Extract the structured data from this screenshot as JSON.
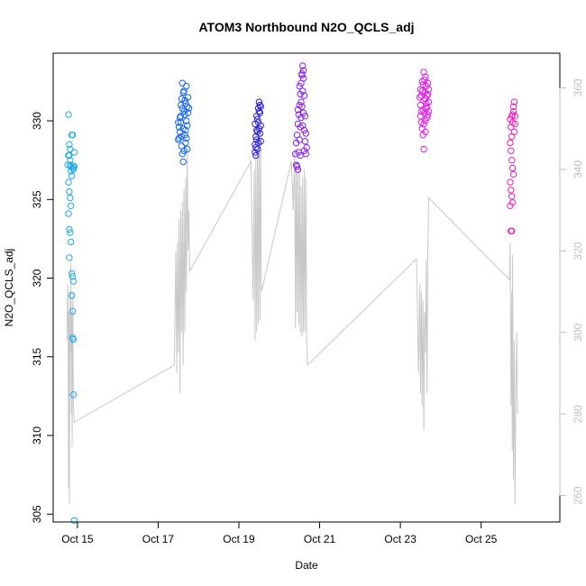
{
  "chart_data": {
    "type": "scatter",
    "title": "ATOM3 Northbound N2O_QCLS_adj",
    "xlabel": "Date",
    "ylabel": "N2O_QCLS_adj",
    "x_ticks": [
      "Oct 15",
      "Oct 17",
      "Oct 19",
      "Oct 21",
      "Oct 23",
      "Oct 25"
    ],
    "x_tick_days": [
      15,
      17,
      19,
      21,
      23,
      25
    ],
    "xlim": [
      14.4,
      26.95
    ],
    "ylim": [
      304.5,
      334.3
    ],
    "y_ticks": [
      305,
      310,
      315,
      320,
      325,
      330
    ],
    "y2_ticks": [
      260,
      280,
      300,
      320,
      340,
      360
    ],
    "y2lim": [
      253.5,
      368.5
    ],
    "grid": false,
    "legend": "none",
    "series": [
      {
        "color": "#1fa9f0",
        "day_range": [
          14.74,
          14.95
        ],
        "points": [
          [
            14.78,
            330.4
          ],
          [
            14.8,
            328.5
          ],
          [
            14.82,
            327.5
          ],
          [
            14.84,
            327.1
          ],
          [
            14.86,
            329.1
          ],
          [
            14.88,
            327.0
          ],
          [
            14.8,
            327.8
          ],
          [
            14.82,
            327.2
          ],
          [
            14.84,
            326.8
          ],
          [
            14.86,
            326.5
          ],
          [
            14.78,
            326.1
          ],
          [
            14.8,
            325.5
          ],
          [
            14.82,
            325.1
          ],
          [
            14.84,
            324.6
          ],
          [
            14.78,
            324.1
          ],
          [
            14.8,
            323.1
          ],
          [
            14.82,
            322.9
          ],
          [
            14.84,
            322.3
          ],
          [
            14.8,
            321.3
          ],
          [
            14.86,
            320.3
          ],
          [
            14.88,
            320.1
          ],
          [
            14.9,
            319.8
          ],
          [
            14.86,
            318.9
          ],
          [
            14.88,
            317.9
          ],
          [
            14.88,
            316.2
          ],
          [
            14.9,
            316.1
          ],
          [
            14.9,
            312.6
          ],
          [
            14.92,
            304.6
          ],
          [
            14.9,
            327.1
          ],
          [
            14.92,
            328.0
          ],
          [
            14.88,
            329.1
          ],
          [
            14.78,
            327.8
          ],
          [
            14.76,
            327.2
          ],
          [
            14.82,
            328.2
          ],
          [
            14.9,
            326.9
          ],
          [
            14.92,
            327.1
          ]
        ]
      },
      {
        "color": "#1565f0",
        "day_range": [
          17.48,
          17.76
        ],
        "points": [
          [
            17.5,
            328.8
          ],
          [
            17.52,
            329.6
          ],
          [
            17.54,
            330.2
          ],
          [
            17.56,
            331.0
          ],
          [
            17.58,
            331.4
          ],
          [
            17.6,
            332.4
          ],
          [
            17.62,
            331.8
          ],
          [
            17.64,
            330.6
          ],
          [
            17.66,
            329.1
          ],
          [
            17.68,
            328.6
          ],
          [
            17.7,
            330.0
          ],
          [
            17.72,
            330.9
          ],
          [
            17.74,
            331.5
          ],
          [
            17.52,
            328.9
          ],
          [
            17.54,
            329.3
          ],
          [
            17.56,
            329.9
          ],
          [
            17.58,
            328.4
          ],
          [
            17.6,
            327.9
          ],
          [
            17.62,
            327.4
          ],
          [
            17.64,
            328.1
          ],
          [
            17.66,
            330.4
          ],
          [
            17.68,
            331.1
          ],
          [
            17.7,
            332.2
          ],
          [
            17.72,
            329.7
          ],
          [
            17.74,
            330.5
          ],
          [
            17.76,
            330.8
          ],
          [
            17.5,
            329.9
          ],
          [
            17.56,
            330.3
          ],
          [
            17.62,
            329.5
          ],
          [
            17.66,
            331.3
          ],
          [
            17.7,
            328.9
          ],
          [
            17.58,
            329.0
          ],
          [
            17.64,
            331.9
          ],
          [
            17.72,
            328.2
          ],
          [
            17.6,
            330.8
          ],
          [
            17.68,
            329.4
          ]
        ]
      },
      {
        "color": "#2a1fe0",
        "day_range": [
          19.38,
          19.56
        ],
        "points": [
          [
            19.4,
            328.5
          ],
          [
            19.42,
            329.0
          ],
          [
            19.44,
            329.4
          ],
          [
            19.46,
            330.1
          ],
          [
            19.48,
            330.8
          ],
          [
            19.5,
            331.2
          ],
          [
            19.52,
            330.5
          ],
          [
            19.54,
            329.7
          ],
          [
            19.4,
            328.0
          ],
          [
            19.42,
            328.3
          ],
          [
            19.44,
            328.8
          ],
          [
            19.46,
            329.3
          ],
          [
            19.48,
            329.9
          ],
          [
            19.5,
            330.6
          ],
          [
            19.52,
            331.0
          ],
          [
            19.54,
            328.7
          ],
          [
            19.42,
            327.8
          ],
          [
            19.46,
            328.2
          ],
          [
            19.5,
            329.5
          ],
          [
            19.44,
            330.3
          ],
          [
            19.48,
            328.6
          ],
          [
            19.52,
            329.2
          ],
          [
            19.4,
            329.8
          ],
          [
            19.54,
            330.9
          ]
        ]
      },
      {
        "color": "#8a1ff0",
        "day_range": [
          20.38,
          20.7
        ],
        "points": [
          [
            20.4,
            327.9
          ],
          [
            20.42,
            328.6
          ],
          [
            20.44,
            329.1
          ],
          [
            20.46,
            329.8
          ],
          [
            20.48,
            330.4
          ],
          [
            20.5,
            331.0
          ],
          [
            20.52,
            331.7
          ],
          [
            20.54,
            332.4
          ],
          [
            20.56,
            333.0
          ],
          [
            20.58,
            333.5
          ],
          [
            20.6,
            332.7
          ],
          [
            20.62,
            331.6
          ],
          [
            20.64,
            330.3
          ],
          [
            20.66,
            329.2
          ],
          [
            20.68,
            328.3
          ],
          [
            20.42,
            327.2
          ],
          [
            20.44,
            327.1
          ],
          [
            20.46,
            326.9
          ],
          [
            20.48,
            328.0
          ],
          [
            20.5,
            328.8
          ],
          [
            20.52,
            329.6
          ],
          [
            20.54,
            330.2
          ],
          [
            20.56,
            330.9
          ],
          [
            20.58,
            331.9
          ],
          [
            20.6,
            330.5
          ],
          [
            20.62,
            329.4
          ],
          [
            20.64,
            328.7
          ],
          [
            20.66,
            327.9
          ],
          [
            20.5,
            332.2
          ],
          [
            20.54,
            331.2
          ],
          [
            20.58,
            329.7
          ],
          [
            20.62,
            328.1
          ],
          [
            20.46,
            330.7
          ],
          [
            20.52,
            327.8
          ],
          [
            20.56,
            332.9
          ],
          [
            20.6,
            333.2
          ]
        ]
      },
      {
        "color": "#e01fe8",
        "day_range": [
          23.45,
          23.72
        ],
        "points": [
          [
            23.48,
            331.5
          ],
          [
            23.5,
            331.0
          ],
          [
            23.52,
            330.6
          ],
          [
            23.54,
            331.9
          ],
          [
            23.56,
            332.3
          ],
          [
            23.58,
            333.1
          ],
          [
            23.6,
            332.6
          ],
          [
            23.62,
            331.4
          ],
          [
            23.64,
            330.8
          ],
          [
            23.66,
            330.2
          ],
          [
            23.68,
            331.7
          ],
          [
            23.7,
            332.0
          ],
          [
            23.5,
            330.3
          ],
          [
            23.52,
            329.9
          ],
          [
            23.54,
            329.5
          ],
          [
            23.56,
            329.1
          ],
          [
            23.58,
            328.2
          ],
          [
            23.6,
            330.5
          ],
          [
            23.62,
            330.0
          ],
          [
            23.64,
            331.1
          ],
          [
            23.66,
            331.6
          ],
          [
            23.68,
            332.4
          ],
          [
            23.7,
            331.2
          ],
          [
            23.52,
            331.6
          ],
          [
            23.56,
            330.7
          ],
          [
            23.6,
            331.8
          ],
          [
            23.64,
            332.2
          ],
          [
            23.68,
            330.4
          ],
          [
            23.54,
            332.5
          ],
          [
            23.58,
            331.3
          ],
          [
            23.62,
            332.8
          ],
          [
            23.66,
            330.9
          ],
          [
            23.5,
            332.0
          ],
          [
            23.7,
            330.6
          ],
          [
            23.58,
            329.8
          ],
          [
            23.62,
            329.3
          ]
        ]
      },
      {
        "color": "#f01fc0",
        "day_range": [
          25.7,
          25.85
        ],
        "points": [
          [
            25.72,
            330.1
          ],
          [
            25.74,
            329.6
          ],
          [
            25.76,
            329.0
          ],
          [
            25.78,
            330.4
          ],
          [
            25.8,
            330.9
          ],
          [
            25.82,
            331.2
          ],
          [
            25.84,
            330.3
          ],
          [
            25.72,
            328.6
          ],
          [
            25.74,
            328.1
          ],
          [
            25.76,
            327.5
          ],
          [
            25.78,
            327.0
          ],
          [
            25.8,
            326.6
          ],
          [
            25.72,
            326.1
          ],
          [
            25.74,
            325.6
          ],
          [
            25.76,
            325.2
          ],
          [
            25.78,
            324.8
          ],
          [
            25.72,
            324.6
          ],
          [
            25.74,
            323.0
          ],
          [
            25.76,
            323.0
          ],
          [
            25.82,
            329.3
          ],
          [
            25.84,
            329.8
          ],
          [
            25.8,
            330.6
          ],
          [
            25.78,
            329.9
          ],
          [
            25.76,
            330.3
          ]
        ]
      }
    ],
    "secondary_line": {
      "color": "#c8c8c8",
      "axis": "right",
      "points": [
        [
          14.74,
          298
        ],
        [
          14.76,
          312
        ],
        [
          14.77,
          300
        ],
        [
          14.78,
          262
        ],
        [
          14.79,
          305
        ],
        [
          14.8,
          258
        ],
        [
          14.81,
          290
        ],
        [
          14.82,
          310
        ],
        [
          14.83,
          295
        ],
        [
          14.84,
          318
        ],
        [
          14.85,
          280
        ],
        [
          14.86,
          305
        ],
        [
          14.87,
          272
        ],
        [
          14.88,
          300
        ],
        [
          14.89,
          310
        ],
        [
          14.9,
          283
        ],
        [
          14.92,
          278
        ],
        [
          17.4,
          292
        ],
        [
          17.44,
          320
        ],
        [
          17.46,
          290
        ],
        [
          17.48,
          322
        ],
        [
          17.5,
          295
        ],
        [
          17.52,
          328
        ],
        [
          17.54,
          285
        ],
        [
          17.56,
          330
        ],
        [
          17.58,
          300
        ],
        [
          17.6,
          332
        ],
        [
          17.62,
          292
        ],
        [
          17.64,
          335
        ],
        [
          17.66,
          300
        ],
        [
          17.68,
          338
        ],
        [
          17.7,
          310
        ],
        [
          17.72,
          345
        ],
        [
          17.74,
          320
        ],
        [
          17.76,
          330
        ],
        [
          17.78,
          315
        ],
        [
          19.3,
          342
        ],
        [
          19.35,
          308
        ],
        [
          19.38,
          340
        ],
        [
          19.4,
          298
        ],
        [
          19.42,
          343
        ],
        [
          19.44,
          300
        ],
        [
          19.46,
          345
        ],
        [
          19.48,
          302
        ],
        [
          19.5,
          348
        ],
        [
          19.52,
          303
        ],
        [
          19.54,
          350
        ],
        [
          19.55,
          320
        ],
        [
          19.56,
          310
        ],
        [
          20.3,
          342
        ],
        [
          20.35,
          330
        ],
        [
          20.38,
          345
        ],
        [
          20.4,
          301
        ],
        [
          20.42,
          342
        ],
        [
          20.44,
          305
        ],
        [
          20.46,
          340
        ],
        [
          20.48,
          302
        ],
        [
          20.5,
          341
        ],
        [
          20.52,
          300
        ],
        [
          20.54,
          336
        ],
        [
          20.56,
          299
        ],
        [
          20.58,
          338
        ],
        [
          20.6,
          300
        ],
        [
          20.62,
          340
        ],
        [
          20.64,
          300
        ],
        [
          20.66,
          338
        ],
        [
          20.68,
          298
        ],
        [
          20.7,
          292
        ],
        [
          23.4,
          318
        ],
        [
          23.45,
          290
        ],
        [
          23.48,
          312
        ],
        [
          23.5,
          285
        ],
        [
          23.52,
          310
        ],
        [
          23.54,
          282
        ],
        [
          23.56,
          308
        ],
        [
          23.58,
          276
        ],
        [
          23.6,
          305
        ],
        [
          23.62,
          295
        ],
        [
          23.64,
          318
        ],
        [
          23.66,
          285
        ],
        [
          23.68,
          320
        ],
        [
          23.7,
          333
        ],
        [
          25.7,
          313
        ],
        [
          25.72,
          322
        ],
        [
          25.74,
          282
        ],
        [
          25.76,
          310
        ],
        [
          25.77,
          271
        ],
        [
          25.78,
          319
        ],
        [
          25.8,
          264
        ],
        [
          25.82,
          298
        ],
        [
          25.84,
          258
        ],
        [
          25.86,
          285
        ],
        [
          25.88,
          300
        ],
        [
          25.9,
          280
        ]
      ]
    }
  }
}
